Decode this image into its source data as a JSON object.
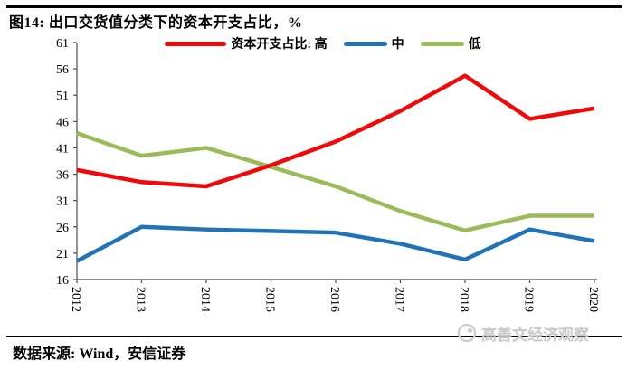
{
  "figure": {
    "title": "图14: 出口交货值分类下的资本开支占比，%",
    "source": "数据来源: Wind，安信证券",
    "watermark": "高善文经济观察"
  },
  "chart_data": {
    "type": "line",
    "title": "出口交货值分类下的资本开支占比，%",
    "categories": [
      "2012",
      "2013",
      "2014",
      "2015",
      "2016",
      "2017",
      "2018",
      "2019",
      "2020"
    ],
    "series": [
      {
        "key": "high",
        "name": "资本开支占比: 高",
        "color": "#ee0a0a",
        "values": [
          36.8,
          34.5,
          33.7,
          37.7,
          42.2,
          48.0,
          54.7,
          46.5,
          48.5
        ]
      },
      {
        "key": "mid",
        "name": "中",
        "color": "#2273b6",
        "values": [
          19.5,
          26.0,
          25.5,
          25.2,
          24.9,
          22.8,
          19.8,
          25.5,
          23.3
        ]
      },
      {
        "key": "low",
        "name": "低",
        "color": "#9bbb59",
        "values": [
          43.8,
          39.5,
          41.0,
          37.4,
          33.7,
          29.0,
          25.3,
          28.1,
          28.1
        ]
      }
    ],
    "ylim": [
      16,
      61
    ],
    "ytick_step": 5,
    "yticks": [
      16,
      21,
      26,
      31,
      36,
      41,
      46,
      51,
      56,
      61
    ],
    "xlabel": "",
    "ylabel": "",
    "grid": false,
    "legend_position": "top-center",
    "x_tick_label_rotation_deg": 90
  }
}
